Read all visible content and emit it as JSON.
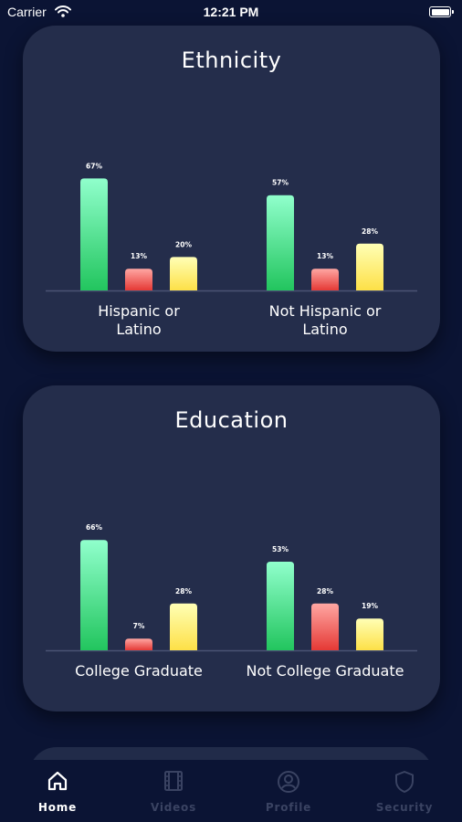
{
  "status_bar": {
    "carrier": "Carrier",
    "time": "12:21 PM"
  },
  "colors": {
    "background": "#0b1434",
    "card": "#242d4b",
    "green": "#22c55e",
    "red": "#e53935",
    "yellow": "#fde047",
    "tab_inactive": "#3a4362"
  },
  "cards": [
    {
      "title": "Ethnicity",
      "chart_data": {
        "type": "bar",
        "categories": [
          "Hispanic or Latino",
          "Not Hispanic or Latino"
        ],
        "series": [
          {
            "values": [
              67,
              57
            ],
            "labels": [
              "67%",
              "57%"
            ],
            "color": "#22c55e"
          },
          {
            "values": [
              13,
              13
            ],
            "labels": [
              "13%",
              "13%"
            ],
            "color": "#e53935"
          },
          {
            "values": [
              20,
              28
            ],
            "labels": [
              "20%",
              "28%"
            ],
            "color": "#fde047"
          }
        ],
        "ylim": [
          0,
          100
        ],
        "grid": false
      }
    },
    {
      "title": "Education",
      "chart_data": {
        "type": "bar",
        "categories": [
          "College Graduate",
          "Not College Graduate"
        ],
        "series": [
          {
            "values": [
              66,
              53
            ],
            "labels": [
              "66%",
              "53%"
            ],
            "color": "#22c55e"
          },
          {
            "values": [
              7,
              28
            ],
            "labels": [
              "7%",
              "28%"
            ],
            "color": "#e53935"
          },
          {
            "values": [
              28,
              19
            ],
            "labels": [
              "28%",
              "19%"
            ],
            "color": "#fde047"
          }
        ],
        "ylim": [
          0,
          100
        ],
        "grid": false
      }
    }
  ],
  "tab_bar": {
    "items": [
      {
        "label": "Home",
        "icon": "home-icon",
        "active": true
      },
      {
        "label": "Videos",
        "icon": "film-icon",
        "active": false
      },
      {
        "label": "Profile",
        "icon": "user-circle-icon",
        "active": false
      },
      {
        "label": "Security",
        "icon": "shield-icon",
        "active": false
      }
    ]
  }
}
